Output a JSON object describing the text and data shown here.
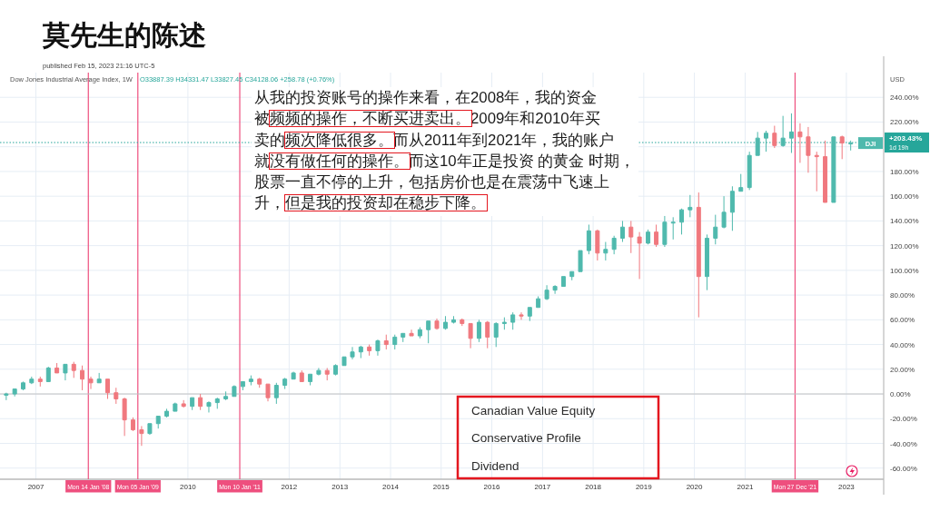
{
  "chart_data": {
    "type": "candlestick",
    "title": "莫先生的陈述",
    "subtitle": "Dow Jones Industrial Average Index, 1W",
    "ylabel": "USD",
    "x": [
      "2006-06",
      "2006-08",
      "2006-10",
      "2006-12",
      "2007-02",
      "2007-04",
      "2007-06",
      "2007-08",
      "2007-10",
      "2007-12",
      "2008-02",
      "2008-04",
      "2008-06",
      "2008-08",
      "2008-10",
      "2008-12",
      "2009-02",
      "2009-04",
      "2009-06",
      "2009-08",
      "2009-10",
      "2009-12",
      "2010-02",
      "2010-04",
      "2010-06",
      "2010-08",
      "2010-10",
      "2010-12",
      "2011-02",
      "2011-04",
      "2011-06",
      "2011-08",
      "2011-10",
      "2011-12",
      "2012-02",
      "2012-04",
      "2012-06",
      "2012-08",
      "2012-10",
      "2012-12",
      "2013-02",
      "2013-04",
      "2013-06",
      "2013-08",
      "2013-10",
      "2013-12",
      "2014-02",
      "2014-04",
      "2014-06",
      "2014-08",
      "2014-10",
      "2014-12",
      "2015-02",
      "2015-04",
      "2015-06",
      "2015-08",
      "2015-10",
      "2015-12",
      "2016-02",
      "2016-04",
      "2016-06",
      "2016-08",
      "2016-10",
      "2016-12",
      "2017-02",
      "2017-04",
      "2017-06",
      "2017-08",
      "2017-10",
      "2017-12",
      "2018-02",
      "2018-04",
      "2018-06",
      "2018-08",
      "2018-10",
      "2018-12",
      "2019-02",
      "2019-04",
      "2019-06",
      "2019-08",
      "2019-10",
      "2019-12",
      "2020-02",
      "2020-04",
      "2020-06",
      "2020-08",
      "2020-10",
      "2020-12",
      "2021-02",
      "2021-04",
      "2021-06",
      "2021-08",
      "2021-10",
      "2021-12",
      "2022-02",
      "2022-04",
      "2022-06",
      "2022-08",
      "2022-10",
      "2022-12",
      "2023-02"
    ],
    "series": [
      {
        "name": "DJI",
        "ohlc": [
          [
            -1,
            1,
            -5,
            0
          ],
          [
            0,
            4,
            -2,
            4
          ],
          [
            4,
            10,
            3,
            9
          ],
          [
            9,
            14,
            8,
            12
          ],
          [
            12,
            14,
            6,
            10
          ],
          [
            10,
            22,
            10,
            21
          ],
          [
            21,
            25,
            17,
            17
          ],
          [
            17,
            24,
            11,
            24
          ],
          [
            24,
            26,
            13,
            19
          ],
          [
            19,
            23,
            3,
            12
          ],
          [
            12,
            14,
            4,
            9
          ],
          [
            9,
            17,
            9,
            12
          ],
          [
            12,
            12,
            -4,
            1
          ],
          [
            1,
            5,
            -8,
            -4
          ],
          [
            -4,
            -3,
            -34,
            -21
          ],
          [
            -21,
            -19,
            -30,
            -29
          ],
          [
            -29,
            -26,
            -42,
            -32
          ],
          [
            -32,
            -24,
            -33,
            -24
          ],
          [
            -24,
            -18,
            -28,
            -18
          ],
          [
            -18,
            -12,
            -19,
            -14
          ],
          [
            -14,
            -7,
            -14,
            -8
          ],
          [
            -8,
            -5,
            -11,
            -10
          ],
          [
            -10,
            -3,
            -13,
            -3
          ],
          [
            -3,
            0,
            -13,
            -10
          ],
          [
            -10,
            -6,
            -15,
            -7
          ],
          [
            -7,
            -3,
            -12,
            -4
          ],
          [
            -4,
            2,
            -5,
            -2
          ],
          [
            -2,
            7,
            -2,
            6
          ],
          [
            6,
            10,
            3,
            10
          ],
          [
            10,
            15,
            7,
            12
          ],
          [
            12,
            13,
            5,
            8
          ],
          [
            8,
            8,
            -6,
            -3
          ],
          [
            -3,
            9,
            -8,
            7
          ],
          [
            7,
            13,
            4,
            12
          ],
          [
            12,
            18,
            12,
            17
          ],
          [
            17,
            19,
            10,
            10
          ],
          [
            10,
            16,
            7,
            16
          ],
          [
            16,
            21,
            15,
            19
          ],
          [
            19,
            21,
            11,
            16
          ],
          [
            16,
            24,
            15,
            23
          ],
          [
            23,
            30,
            23,
            30
          ],
          [
            30,
            38,
            28,
            34
          ],
          [
            34,
            39,
            29,
            38
          ],
          [
            38,
            40,
            31,
            35
          ],
          [
            35,
            44,
            31,
            43
          ],
          [
            43,
            48,
            36,
            40
          ],
          [
            40,
            48,
            36,
            46
          ],
          [
            46,
            49,
            42,
            49
          ],
          [
            49,
            52,
            47,
            47
          ],
          [
            47,
            54,
            45,
            52
          ],
          [
            52,
            59,
            41,
            59
          ],
          [
            59,
            61,
            52,
            53
          ],
          [
            53,
            63,
            52,
            58
          ],
          [
            58,
            63,
            57,
            60
          ],
          [
            60,
            61,
            55,
            57
          ],
          [
            57,
            57,
            37,
            45
          ],
          [
            45,
            60,
            42,
            58
          ],
          [
            58,
            59,
            37,
            46
          ],
          [
            46,
            58,
            38,
            57
          ],
          [
            57,
            62,
            52,
            58
          ],
          [
            58,
            66,
            52,
            64
          ],
          [
            64,
            66,
            60,
            63
          ],
          [
            63,
            70,
            59,
            70
          ],
          [
            70,
            79,
            70,
            77
          ],
          [
            77,
            88,
            76,
            84
          ],
          [
            84,
            88,
            81,
            87
          ],
          [
            87,
            95,
            87,
            95
          ],
          [
            95,
            99,
            92,
            99
          ],
          [
            99,
            116,
            99,
            116
          ],
          [
            116,
            137,
            113,
            132
          ],
          [
            132,
            133,
            108,
            114
          ],
          [
            114,
            123,
            108,
            117
          ],
          [
            117,
            128,
            113,
            126
          ],
          [
            126,
            140,
            123,
            135
          ],
          [
            135,
            140,
            114,
            127
          ],
          [
            127,
            131,
            93,
            122
          ],
          [
            122,
            133,
            121,
            131
          ],
          [
            131,
            137,
            119,
            121
          ],
          [
            121,
            144,
            119,
            139
          ],
          [
            139,
            143,
            125,
            139
          ],
          [
            139,
            150,
            129,
            149
          ],
          [
            149,
            161,
            143,
            151
          ],
          [
            151,
            163,
            62,
            95
          ],
          [
            95,
            129,
            84,
            126
          ],
          [
            126,
            145,
            121,
            135
          ],
          [
            135,
            160,
            134,
            147
          ],
          [
            147,
            168,
            132,
            164
          ],
          [
            164,
            178,
            164,
            167
          ],
          [
            167,
            196,
            165,
            193
          ],
          [
            193,
            212,
            193,
            207
          ],
          [
            207,
            213,
            196,
            211
          ],
          [
            211,
            217,
            199,
            201
          ],
          [
            201,
            225,
            200,
            207
          ],
          [
            207,
            227,
            195,
            212
          ],
          [
            212,
            219,
            187,
            208
          ],
          [
            208,
            216,
            179,
            193
          ],
          [
            193,
            196,
            164,
            192
          ],
          [
            192,
            205,
            155,
            155
          ],
          [
            155,
            208,
            155,
            208
          ],
          [
            208,
            209,
            190,
            203
          ],
          [
            203,
            205,
            197,
            203
          ]
        ],
        "colors": [
          "#4fb9ad",
          "#4fb9ad",
          "#4fb9ad",
          "#4fb9ad",
          "#f0787e",
          "#4fb9ad",
          "#f0787e",
          "#4fb9ad",
          "#f0787e",
          "#f0787e",
          "#f0787e",
          "#4fb9ad",
          "#f0787e",
          "#f0787e",
          "#f0787e",
          "#f0787e",
          "#f0787e",
          "#4fb9ad",
          "#4fb9ad",
          "#4fb9ad",
          "#4fb9ad",
          "#f0787e",
          "#4fb9ad",
          "#f0787e",
          "#4fb9ad",
          "#4fb9ad",
          "#4fb9ad",
          "#4fb9ad",
          "#4fb9ad",
          "#4fb9ad",
          "#f0787e",
          "#f0787e",
          "#4fb9ad",
          "#4fb9ad",
          "#4fb9ad",
          "#f0787e",
          "#4fb9ad",
          "#4fb9ad",
          "#f0787e",
          "#4fb9ad",
          "#4fb9ad",
          "#4fb9ad",
          "#4fb9ad",
          "#f0787e",
          "#4fb9ad",
          "#f0787e",
          "#4fb9ad",
          "#4fb9ad",
          "#f0787e",
          "#4fb9ad",
          "#4fb9ad",
          "#f0787e",
          "#4fb9ad",
          "#4fb9ad",
          "#f0787e",
          "#f0787e",
          "#4fb9ad",
          "#f0787e",
          "#4fb9ad",
          "#4fb9ad",
          "#4fb9ad",
          "#f0787e",
          "#4fb9ad",
          "#4fb9ad",
          "#4fb9ad",
          "#4fb9ad",
          "#4fb9ad",
          "#4fb9ad",
          "#4fb9ad",
          "#4fb9ad",
          "#f0787e",
          "#4fb9ad",
          "#4fb9ad",
          "#4fb9ad",
          "#f0787e",
          "#f0787e",
          "#4fb9ad",
          "#f0787e",
          "#4fb9ad",
          "#4fb9ad",
          "#4fb9ad",
          "#4fb9ad",
          "#f0787e",
          "#4fb9ad",
          "#4fb9ad",
          "#4fb9ad",
          "#4fb9ad",
          "#4fb9ad",
          "#4fb9ad",
          "#4fb9ad",
          "#4fb9ad",
          "#f0787e",
          "#4fb9ad",
          "#4fb9ad",
          "#f0787e",
          "#f0787e",
          "#f0787e",
          "#f0787e",
          "#4fb9ad",
          "#f0787e",
          "#4fb9ad"
        ]
      }
    ],
    "xlim": [
      "2006-04-17",
      "2023-09-27"
    ],
    "ylim": [
      -69,
      260
    ],
    "xticks": [
      "2007",
      "2010",
      "2012",
      "2013",
      "2014",
      "2015",
      "2016",
      "2017",
      "2018",
      "2019",
      "2020",
      "2021",
      "2023"
    ],
    "yticks": [
      {
        "value": -60,
        "label": "-60.00%"
      },
      {
        "value": -40,
        "label": "-40.00%"
      },
      {
        "value": -20,
        "label": "-20.00%"
      },
      {
        "value": 0,
        "label": "0.00%"
      },
      {
        "value": 20,
        "label": "20.00%"
      },
      {
        "value": 40,
        "label": "40.00%"
      },
      {
        "value": 60,
        "label": "60.00%"
      },
      {
        "value": 80,
        "label": "80.00%"
      },
      {
        "value": 100,
        "label": "100.00%"
      },
      {
        "value": 120,
        "label": "120.00%"
      },
      {
        "value": 140,
        "label": "140.00%"
      },
      {
        "value": 160,
        "label": "160.00%"
      },
      {
        "value": 180,
        "label": "180.00%"
      },
      {
        "value": 200,
        "label": null
      },
      {
        "value": 220,
        "label": "220.00%"
      },
      {
        "value": 240,
        "label": "240.00%"
      }
    ],
    "grid": true,
    "ref_lines": [
      {
        "axis": "x",
        "value": "2008-01-14",
        "label": "Mon 14 Jan '08",
        "color": "#ee4f7e"
      },
      {
        "axis": "x",
        "value": "2009-01-05",
        "label": "Mon 05 Jan '09",
        "color": "#ee4f7e"
      },
      {
        "axis": "x",
        "value": "2011-01-10",
        "label": "Mon 10 Jan '11",
        "color": "#ee4f7e"
      },
      {
        "axis": "x",
        "value": "2021-12-27",
        "label": "Mon 27 Dec '21",
        "color": "#ee4f7e"
      },
      {
        "axis": "y",
        "value": 0,
        "color": "#c4c4c4"
      },
      {
        "axis": "y",
        "value": 203.43,
        "label": "+203.43%",
        "color": "#26a69a",
        "line_style": "dotted"
      }
    ],
    "annotations": [
      "published Feb 15, 2023 21:16 UTC-5",
      "O33887.39 H34331.47 L33827.45 C34128.06 +258.78 (+0.76%)",
      "从我的投资账号的操作来看，在2008年，我的资金被频频的操作，不断买进卖出。2009年和2010年买卖的频次降低很多。而从2011年到2021年，我的账户就没有做任何的操作。而这10年正是投资 的黄金 时期，股票一直不停的上升，包括房价也是在震荡中飞速上升，但是我的投资却在稳步下降。",
      "Canadian Value Equity",
      "Conservative Profile",
      "Dividend",
      "1d 19h"
    ]
  }
}
